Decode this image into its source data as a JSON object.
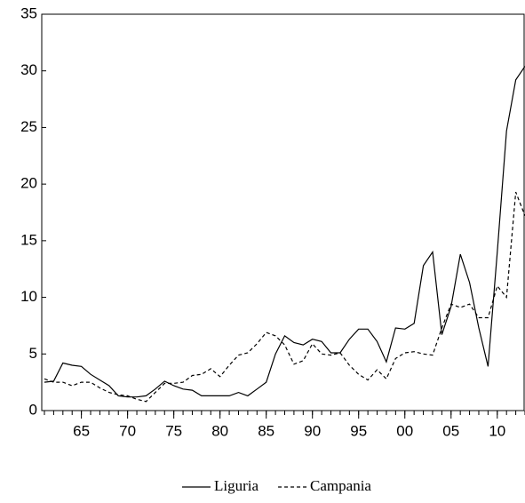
{
  "chart_data": {
    "type": "line",
    "x": [
      1961,
      1962,
      1963,
      1964,
      1965,
      1966,
      1967,
      1968,
      1969,
      1970,
      1971,
      1972,
      1973,
      1974,
      1975,
      1976,
      1977,
      1978,
      1979,
      1980,
      1981,
      1982,
      1983,
      1984,
      1985,
      1986,
      1987,
      1988,
      1989,
      1990,
      1991,
      1992,
      1993,
      1994,
      1995,
      1996,
      1997,
      1998,
      1999,
      2000,
      2001,
      2002,
      2003,
      2004,
      2005,
      2006,
      2007,
      2008,
      2009,
      2010,
      2011,
      2012,
      2013
    ],
    "series": [
      {
        "name": "Liguria",
        "color": "#000000",
        "dash": "solid",
        "values": [
          2.5,
          2.6,
          4.2,
          4.0,
          3.9,
          3.2,
          2.7,
          2.2,
          1.3,
          1.2,
          1.2,
          1.3,
          1.9,
          2.6,
          2.2,
          1.9,
          1.8,
          1.3,
          1.3,
          1.3,
          1.3,
          1.6,
          1.3,
          1.9,
          2.5,
          5.0,
          6.6,
          6.0,
          5.8,
          6.3,
          6.1,
          5.1,
          5.1,
          6.3,
          7.2,
          7.2,
          6.1,
          4.3,
          7.3,
          7.2,
          7.7,
          12.8,
          14.0,
          6.7,
          9.2,
          13.8,
          11.3,
          7.3,
          3.9,
          14.0,
          24.7,
          29.2,
          30.4
        ]
      },
      {
        "name": "Campania",
        "color": "#000000",
        "dash": "dashed",
        "values": [
          2.8,
          2.5,
          2.5,
          2.2,
          2.5,
          2.5,
          2.0,
          1.6,
          1.4,
          1.3,
          1.0,
          0.8,
          1.6,
          2.4,
          2.4,
          2.5,
          3.1,
          3.2,
          3.7,
          3.0,
          4.0,
          4.9,
          5.1,
          5.9,
          6.9,
          6.6,
          5.8,
          4.1,
          4.4,
          5.9,
          5.0,
          4.9,
          5.1,
          4.0,
          3.2,
          2.7,
          3.6,
          2.8,
          4.6,
          5.1,
          5.2,
          5.0,
          4.9,
          7.3,
          9.4,
          9.1,
          9.4,
          8.2,
          8.2,
          11.0,
          10.0,
          19.3,
          17.2
        ]
      }
    ],
    "xlim": [
      1961,
      2013
    ],
    "xticks": [
      {
        "value": 1965,
        "label": "65"
      },
      {
        "value": 1970,
        "label": "70"
      },
      {
        "value": 1975,
        "label": "75"
      },
      {
        "value": 1980,
        "label": "80"
      },
      {
        "value": 1985,
        "label": "85"
      },
      {
        "value": 1990,
        "label": "90"
      },
      {
        "value": 1995,
        "label": "95"
      },
      {
        "value": 2000,
        "label": "00"
      },
      {
        "value": 2005,
        "label": "05"
      },
      {
        "value": 2010,
        "label": "10"
      }
    ],
    "ylim": [
      0,
      35
    ],
    "yticks": [
      0,
      5,
      10,
      15,
      20,
      25,
      30,
      35
    ],
    "legend": "bottom"
  }
}
